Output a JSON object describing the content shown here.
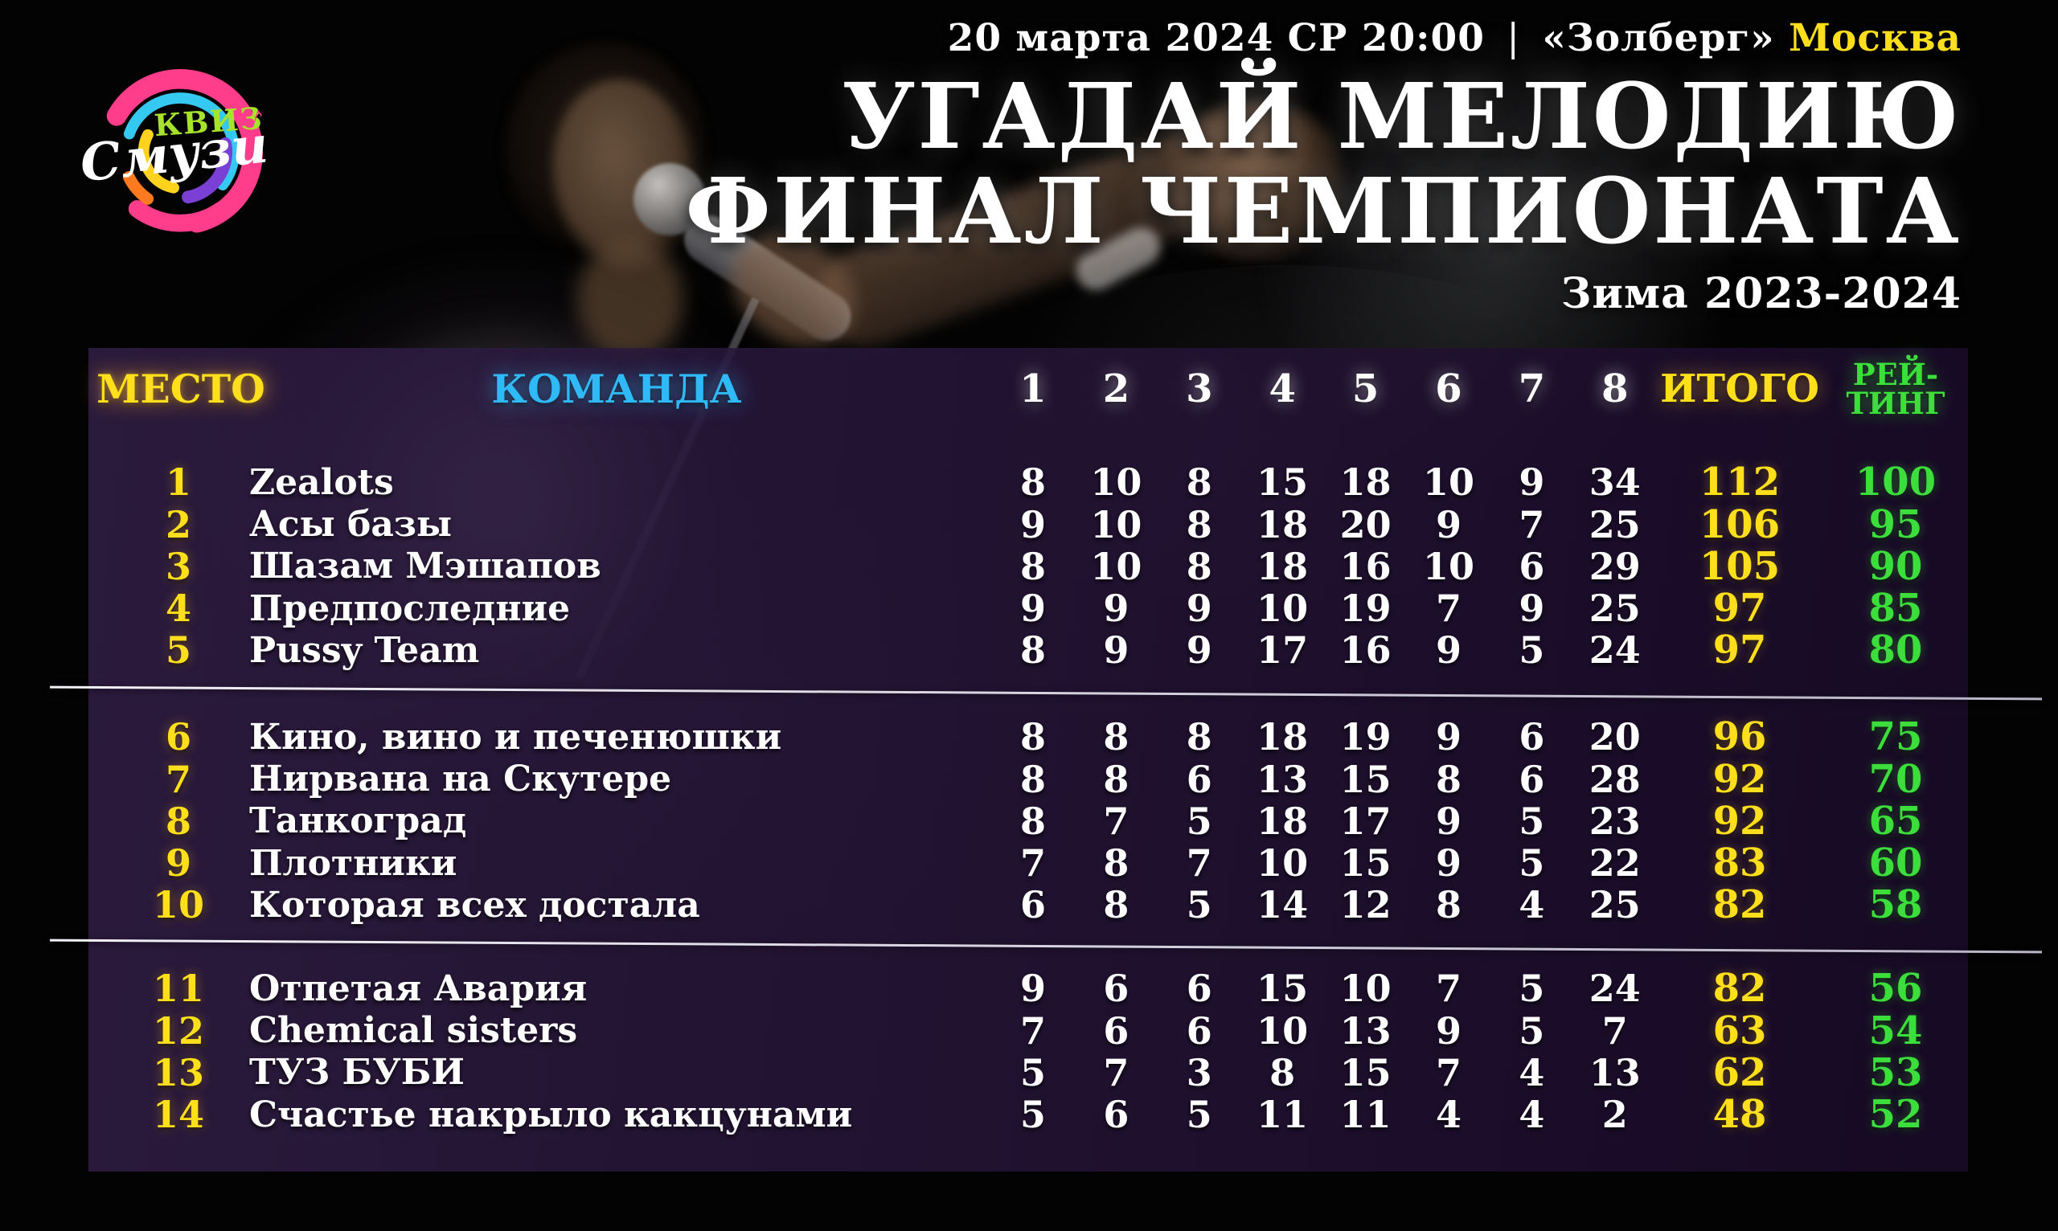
{
  "logo": {
    "kviz": "КВИЗ",
    "smuzi": "Смузи",
    "note": "♪"
  },
  "header": {
    "date": "20 марта 2024 СР 20:00",
    "divider": "|",
    "venue": "«Золберг»",
    "city": "Москва",
    "title_line1": "УГАДАЙ МЕЛОДИЮ",
    "title_line2": "ФИНАЛ ЧЕМПИОНАТА",
    "season": "Зима 2023-2024"
  },
  "colors": {
    "accent_yellow": "#FFDF1B",
    "accent_cyan": "#2FB9F6",
    "accent_green": "#3CDE3C",
    "panel_purple": "#2A1838"
  },
  "table": {
    "headers": {
      "place": "МЕСТО",
      "team": "КОМАНДА",
      "rounds": [
        "1",
        "2",
        "3",
        "4",
        "5",
        "6",
        "7",
        "8"
      ],
      "total": "ИТОГО",
      "rating_line1": "РЕЙ-",
      "rating_line2": "ТИНГ"
    },
    "groups": [
      {
        "rows": [
          {
            "place": "1",
            "team": "Zealots",
            "scores": [
              "8",
              "10",
              "8",
              "15",
              "18",
              "10",
              "9",
              "34"
            ],
            "total": "112",
            "rating": "100"
          },
          {
            "place": "2",
            "team": "Асы базы",
            "scores": [
              "9",
              "10",
              "8",
              "18",
              "20",
              "9",
              "7",
              "25"
            ],
            "total": "106",
            "rating": "95"
          },
          {
            "place": "3",
            "team": "Шазам Мэшапов",
            "scores": [
              "8",
              "10",
              "8",
              "18",
              "16",
              "10",
              "6",
              "29"
            ],
            "total": "105",
            "rating": "90"
          },
          {
            "place": "4",
            "team": "Предпоследние",
            "scores": [
              "9",
              "9",
              "9",
              "10",
              "19",
              "7",
              "9",
              "25"
            ],
            "total": "97",
            "rating": "85"
          },
          {
            "place": "5",
            "team": "Pussy Team",
            "scores": [
              "8",
              "9",
              "9",
              "17",
              "16",
              "9",
              "5",
              "24"
            ],
            "total": "97",
            "rating": "80"
          }
        ]
      },
      {
        "rows": [
          {
            "place": "6",
            "team": "Кино, вино и печенюшки",
            "scores": [
              "8",
              "8",
              "8",
              "18",
              "19",
              "9",
              "6",
              "20"
            ],
            "total": "96",
            "rating": "75"
          },
          {
            "place": "7",
            "team": "Нирвана на Скутере",
            "scores": [
              "8",
              "8",
              "6",
              "13",
              "15",
              "8",
              "6",
              "28"
            ],
            "total": "92",
            "rating": "70"
          },
          {
            "place": "8",
            "team": "Танкоград",
            "scores": [
              "8",
              "7",
              "5",
              "18",
              "17",
              "9",
              "5",
              "23"
            ],
            "total": "92",
            "rating": "65"
          },
          {
            "place": "9",
            "team": "Плотники",
            "scores": [
              "7",
              "8",
              "7",
              "10",
              "15",
              "9",
              "5",
              "22"
            ],
            "total": "83",
            "rating": "60"
          },
          {
            "place": "10",
            "team": "Которая всех достала",
            "scores": [
              "6",
              "8",
              "5",
              "14",
              "12",
              "8",
              "4",
              "25"
            ],
            "total": "82",
            "rating": "58"
          }
        ]
      },
      {
        "rows": [
          {
            "place": "11",
            "team": "Отпетая Авария",
            "scores": [
              "9",
              "6",
              "6",
              "15",
              "10",
              "7",
              "5",
              "24"
            ],
            "total": "82",
            "rating": "56"
          },
          {
            "place": "12",
            "team": "Chemical sisters",
            "scores": [
              "7",
              "6",
              "6",
              "10",
              "13",
              "9",
              "5",
              "7"
            ],
            "total": "63",
            "rating": "54"
          },
          {
            "place": "13",
            "team": "ТУЗ БУБИ",
            "scores": [
              "5",
              "7",
              "3",
              "8",
              "15",
              "7",
              "4",
              "13"
            ],
            "total": "62",
            "rating": "53"
          },
          {
            "place": "14",
            "team": "Счастье накрыло какцунами",
            "scores": [
              "5",
              "6",
              "5",
              "11",
              "11",
              "4",
              "4",
              "2"
            ],
            "total": "48",
            "rating": "52"
          }
        ]
      }
    ]
  }
}
